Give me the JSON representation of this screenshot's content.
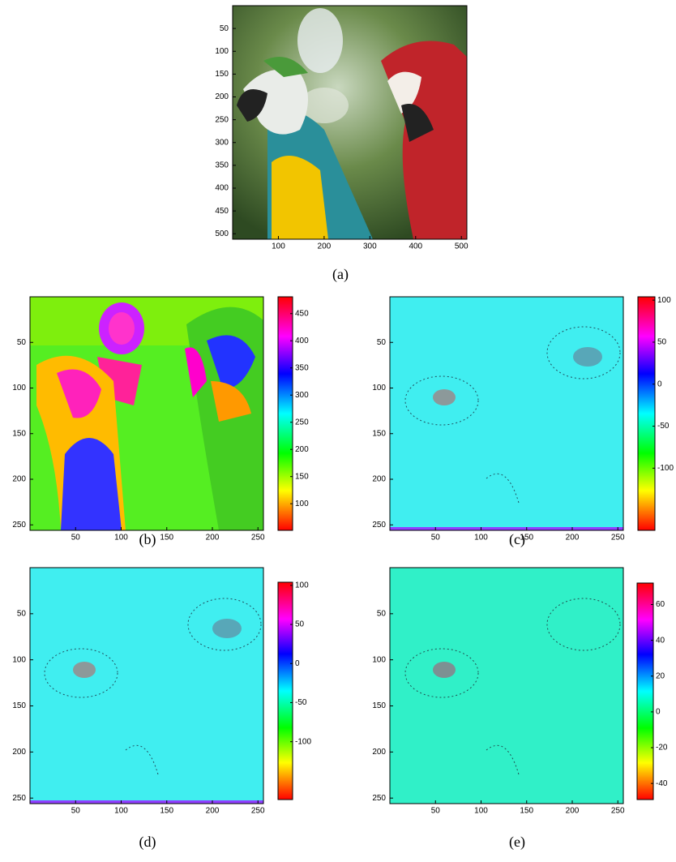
{
  "panels": [
    {
      "caption": "(a)",
      "xlim": [
        0,
        512
      ],
      "ylim": [
        0,
        512
      ],
      "xticks": [
        100,
        200,
        300,
        400,
        500
      ],
      "yticks": [
        50,
        100,
        150,
        200,
        250,
        300,
        350,
        400,
        450,
        500
      ]
    },
    {
      "caption": "(b)",
      "xlim": [
        0,
        256
      ],
      "ylim": [
        0,
        256
      ],
      "xticks": [
        50,
        100,
        150,
        200,
        250
      ],
      "yticks": [
        50,
        100,
        150,
        200,
        250
      ],
      "colorbar": {
        "clim": [
          51,
          481
        ],
        "ticks": [
          100,
          150,
          200,
          250,
          300,
          350,
          400,
          450
        ]
      }
    },
    {
      "caption": "(c)",
      "xlim": [
        0,
        256
      ],
      "ylim": [
        0,
        256
      ],
      "xticks": [
        50,
        100,
        150,
        200,
        250
      ],
      "yticks": [
        50,
        100,
        150,
        200,
        250
      ],
      "colorbar": {
        "clim": [
          -174,
          104
        ],
        "ticks": [
          -100,
          -50,
          0,
          50,
          100
        ]
      }
    },
    {
      "caption": "(d)",
      "xlim": [
        0,
        256
      ],
      "ylim": [
        0,
        256
      ],
      "xticks": [
        50,
        100,
        150,
        200,
        250
      ],
      "yticks": [
        50,
        100,
        150,
        200,
        250
      ],
      "colorbar": {
        "clim": [
          -174,
          104
        ],
        "ticks": [
          -100,
          -50,
          0,
          50,
          100
        ]
      }
    },
    {
      "caption": "(e)",
      "xlim": [
        0,
        256
      ],
      "ylim": [
        0,
        256
      ],
      "xticks": [
        50,
        100,
        150,
        200,
        250
      ],
      "yticks": [
        50,
        100,
        150,
        200,
        250
      ],
      "colorbar": {
        "clim": [
          -49,
          72
        ],
        "ticks": [
          -40,
          -20,
          0,
          20,
          40,
          60
        ]
      }
    }
  ]
}
